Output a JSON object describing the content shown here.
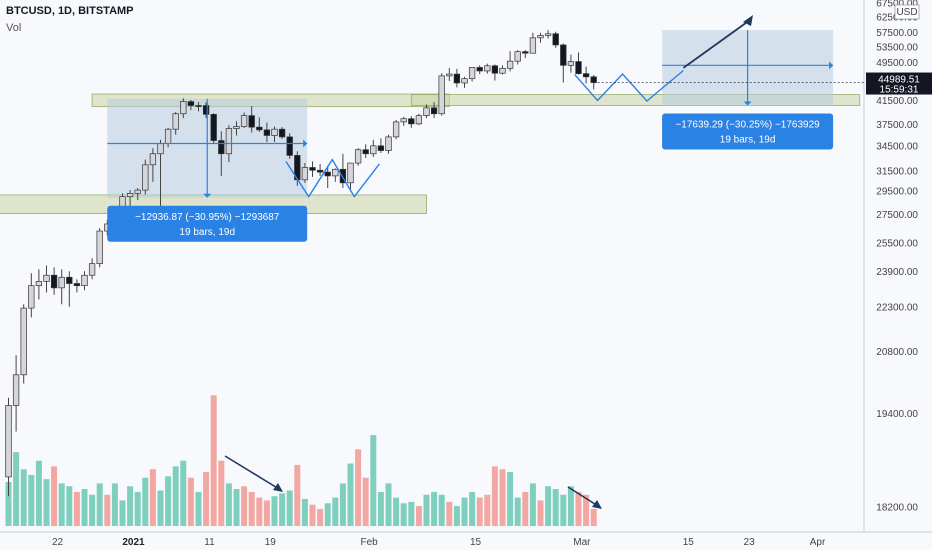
{
  "header": {
    "title": "BTCUSD, 1D, BITSTAMP",
    "volume_label": "Vol"
  },
  "currency": "USD",
  "price_tag": {
    "price": "44989.51",
    "countdown": "15:59:31",
    "value": 44989.51
  },
  "colors": {
    "up": "#d5d6db",
    "down": "#131722",
    "wick": "#444444",
    "vol_up": "#7fcfbf",
    "vol_down": "#f3a7a3",
    "zone": "#c8d6a4",
    "range": "#b7cde0",
    "blue": "#2a82e4",
    "arrow": "#1f3a5f"
  },
  "chart_data": {
    "type": "candlestick",
    "symbol": "BTCUSD",
    "interval": "1D",
    "exchange": "BITSTAMP",
    "y_ticks": [
      18200,
      19400,
      20800,
      22300,
      23900,
      25500,
      27500,
      29500,
      31500,
      34500,
      37500,
      41500,
      45500,
      49500,
      53500,
      57500,
      62500,
      67500
    ],
    "y_tick_labels": [
      "18200.00",
      "19400.00",
      "20800.00",
      "22300.00",
      "23900.00",
      "25500.00",
      "27500.00",
      "29500.00",
      "31500.00",
      "34500.00",
      "37500.00",
      "41500.00",
      "45500.00",
      "49500.00",
      "53500.00",
      "57500.00",
      "62500.00",
      "67500.00"
    ],
    "x_ticks": [
      {
        "label": "22",
        "day": 0
      },
      {
        "label": "2021",
        "day": 10,
        "bold": true
      },
      {
        "label": "11",
        "day": 20
      },
      {
        "label": "19",
        "day": 28
      },
      {
        "label": "Feb",
        "day": 41
      },
      {
        "label": "15",
        "day": 55
      },
      {
        "label": "Mar",
        "day": 69
      },
      {
        "label": "15",
        "day": 83
      },
      {
        "label": "23",
        "day": 91
      },
      {
        "label": "Apr",
        "day": 100
      }
    ],
    "candles": [
      [
        18500,
        19700,
        18300,
        19550
      ],
      [
        19550,
        20700,
        19100,
        20200
      ],
      [
        20200,
        22400,
        20000,
        22250
      ],
      [
        22250,
        23800,
        21900,
        23200
      ],
      [
        23200,
        24000,
        22600,
        23400
      ],
      [
        23400,
        24200,
        22900,
        23700
      ],
      [
        23700,
        24100,
        22800,
        23100
      ],
      [
        23100,
        24000,
        22400,
        23600
      ],
      [
        23600,
        23900,
        22300,
        23300
      ],
      [
        23300,
        23500,
        22900,
        23200
      ],
      [
        23200,
        23900,
        23000,
        23700
      ],
      [
        23700,
        24600,
        23500,
        24300
      ],
      [
        24300,
        26500,
        24100,
        26300
      ],
      [
        26300,
        27100,
        26000,
        26800
      ],
      [
        26800,
        27400,
        26500,
        27100
      ],
      [
        27100,
        29300,
        27000,
        29000
      ],
      [
        29000,
        29600,
        28200,
        29300
      ],
      [
        29300,
        29800,
        28700,
        29600
      ],
      [
        29600,
        32800,
        29200,
        32200
      ],
      [
        32200,
        34200,
        30400,
        33500
      ],
      [
        33500,
        35300,
        28000,
        34800
      ],
      [
        34800,
        37000,
        34300,
        36800
      ],
      [
        36800,
        39500,
        36000,
        39200
      ],
      [
        39200,
        41900,
        38500,
        41300
      ],
      [
        41300,
        41600,
        39800,
        40600
      ],
      [
        40600,
        41200,
        39600,
        40500
      ],
      [
        40600,
        41200,
        38500,
        39100
      ],
      [
        39100,
        39300,
        34800,
        35200
      ],
      [
        35200,
        36500,
        31000,
        33500
      ],
      [
        33500,
        37400,
        32500,
        36900
      ],
      [
        36900,
        38000,
        35900,
        37200
      ],
      [
        37200,
        39400,
        37000,
        38900
      ],
      [
        38900,
        40500,
        36300,
        37100
      ],
      [
        37100,
        38600,
        36400,
        36700
      ],
      [
        36700,
        37800,
        35000,
        35900
      ],
      [
        35900,
        37200,
        35000,
        36800
      ],
      [
        36800,
        37100,
        35400,
        35700
      ],
      [
        35700,
        36200,
        32900,
        33300
      ],
      [
        33300,
        33800,
        30000,
        30600
      ],
      [
        30600,
        32400,
        30300,
        31900
      ],
      [
        31900,
        32600,
        30900,
        31600
      ],
      [
        31600,
        32300,
        31000,
        31400
      ],
      [
        31400,
        32100,
        29800,
        31000
      ],
      [
        31000,
        31800,
        30400,
        31700
      ],
      [
        31700,
        33500,
        29800,
        30300
      ],
      [
        30300,
        32400,
        29500,
        32400
      ],
      [
        32400,
        34200,
        32100,
        34000
      ],
      [
        34000,
        34700,
        33000,
        33500
      ],
      [
        33500,
        35300,
        33100,
        34500
      ],
      [
        34500,
        35500,
        33600,
        33900
      ],
      [
        33900,
        36000,
        33500,
        35700
      ],
      [
        35700,
        38200,
        35400,
        37900
      ],
      [
        37900,
        38700,
        37300,
        38400
      ],
      [
        38400,
        38800,
        37000,
        37600
      ],
      [
        37600,
        39200,
        37400,
        38900
      ],
      [
        38900,
        40800,
        38500,
        40200
      ],
      [
        40200,
        41200,
        38500,
        39200
      ],
      [
        39200,
        47000,
        38900,
        46400
      ],
      [
        46400,
        48200,
        45300,
        46800
      ],
      [
        46800,
        48000,
        44000,
        44900
      ],
      [
        44900,
        46200,
        43900,
        45800
      ],
      [
        45800,
        48400,
        45200,
        48300
      ],
      [
        48300,
        48800,
        46800,
        47500
      ],
      [
        47500,
        49200,
        46900,
        48700
      ],
      [
        48700,
        49000,
        45400,
        47000
      ],
      [
        47000,
        48800,
        46700,
        48100
      ],
      [
        48100,
        52300,
        47400,
        49800
      ],
      [
        49800,
        52600,
        49000,
        52200
      ],
      [
        52200,
        52600,
        50600,
        51800
      ],
      [
        51800,
        57500,
        51700,
        56000
      ],
      [
        56000,
        57500,
        54600,
        56700
      ],
      [
        56700,
        58300,
        55800,
        57200
      ],
      [
        57200,
        57800,
        53200,
        54000
      ],
      [
        54000,
        54400,
        45000,
        48800
      ],
      [
        48800,
        51400,
        47100,
        49700
      ],
      [
        49700,
        52000,
        46700,
        46900
      ],
      [
        46900,
        48500,
        44800,
        46200
      ],
      [
        46200,
        46600,
        43600,
        44990
      ]
    ],
    "volume": [
      [
        31,
        true
      ],
      [
        52,
        true
      ],
      [
        40,
        true
      ],
      [
        36,
        true
      ],
      [
        46,
        true
      ],
      [
        33,
        true
      ],
      [
        42,
        false
      ],
      [
        30,
        true
      ],
      [
        28,
        true
      ],
      [
        24,
        false
      ],
      [
        26,
        true
      ],
      [
        22,
        true
      ],
      [
        30,
        true
      ],
      [
        22,
        false
      ],
      [
        30,
        true
      ],
      [
        18,
        true
      ],
      [
        28,
        true
      ],
      [
        24,
        true
      ],
      [
        34,
        true
      ],
      [
        40,
        false
      ],
      [
        25,
        true
      ],
      [
        35,
        true
      ],
      [
        42,
        true
      ],
      [
        46,
        true
      ],
      [
        34,
        false
      ],
      [
        24,
        true
      ],
      [
        38,
        false
      ],
      [
        92,
        false
      ],
      [
        46,
        false
      ],
      [
        30,
        true
      ],
      [
        26,
        true
      ],
      [
        28,
        false
      ],
      [
        24,
        false
      ],
      [
        20,
        false
      ],
      [
        18,
        false
      ],
      [
        21,
        true
      ],
      [
        23,
        true
      ],
      [
        25,
        true
      ],
      [
        43,
        false
      ],
      [
        19,
        true
      ],
      [
        15,
        false
      ],
      [
        12,
        false
      ],
      [
        16,
        true
      ],
      [
        20,
        true
      ],
      [
        30,
        true
      ],
      [
        44,
        true
      ],
      [
        54,
        false
      ],
      [
        34,
        false
      ],
      [
        64,
        true
      ],
      [
        24,
        true
      ],
      [
        30,
        true
      ],
      [
        20,
        true
      ],
      [
        16,
        true
      ],
      [
        17,
        true
      ],
      [
        14,
        false
      ],
      [
        22,
        true
      ],
      [
        24,
        true
      ],
      [
        22,
        true
      ],
      [
        17,
        false
      ],
      [
        14,
        true
      ],
      [
        20,
        true
      ],
      [
        24,
        true
      ],
      [
        20,
        false
      ],
      [
        22,
        false
      ],
      [
        42,
        false
      ],
      [
        40,
        false
      ],
      [
        38,
        true
      ],
      [
        20,
        true
      ],
      [
        24,
        false
      ],
      [
        30,
        true
      ],
      [
        18,
        false
      ],
      [
        28,
        true
      ],
      [
        26,
        true
      ],
      [
        22,
        true
      ],
      [
        28,
        true
      ],
      [
        24,
        false
      ],
      [
        22,
        false
      ],
      [
        12,
        false
      ]
    ],
    "drawings": {
      "support_zones": [
        {
          "day1": 11,
          "day2": 58,
          "y1": 40400,
          "y2": 42700
        },
        {
          "day1": 53,
          "day2": 112,
          "y1": 40600,
          "y2": 42600
        }
      ],
      "lower_zone": {
        "day1": -3,
        "day2": 55,
        "y1": 27900,
        "y2": 28800
      },
      "measure_boxes": [
        {
          "day1": 13,
          "day2": 39.3,
          "y_top": 41800,
          "y_bottom": 28900,
          "line1": "−12936.87 (−30.95%) −1293687",
          "line2": "19 bars, 19d"
        },
        {
          "day1": 86,
          "day2": 108.5,
          "y_top": 58300,
          "y_bottom": 40600,
          "line1": "−17639.29 (−30.25%) −1763929",
          "line2": "19 bars, 19d"
        }
      ]
    }
  }
}
